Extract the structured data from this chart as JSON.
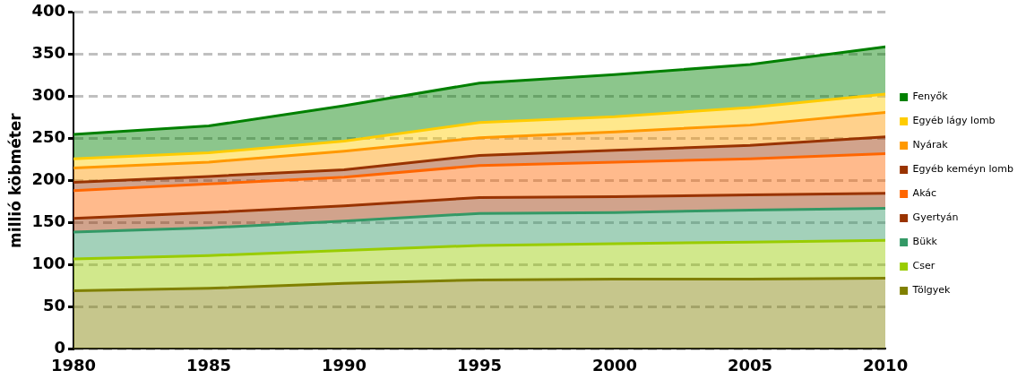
{
  "chart_data": {
    "type": "area",
    "stacked": true,
    "ylabel": "millió köbméter",
    "x": [
      1980,
      1985,
      1990,
      1995,
      2000,
      2005,
      2010
    ],
    "xlim": [
      1980,
      2010
    ],
    "xticks": [
      1980,
      1985,
      1990,
      1995,
      2000,
      2005,
      2010
    ],
    "ylim": [
      0,
      400
    ],
    "yticks": [
      0,
      50,
      100,
      150,
      200,
      250,
      300,
      350,
      400
    ],
    "grid": "y",
    "legend": "right",
    "series": [
      {
        "name": "Tölgyek",
        "color": "#808000",
        "values": [
          69,
          72,
          78,
          82,
          83,
          83,
          84
        ]
      },
      {
        "name": "Cser",
        "color": "#99cc00",
        "values": [
          38,
          39,
          39,
          41,
          42,
          44,
          45
        ]
      },
      {
        "name": "Bükk",
        "color": "#339966",
        "values": [
          32,
          33,
          35,
          38,
          37,
          38,
          38
        ]
      },
      {
        "name": "Gyertyán",
        "color": "#993300",
        "values": [
          16,
          18,
          18,
          19,
          19,
          18,
          18
        ]
      },
      {
        "name": "Akác",
        "color": "#ff6600",
        "values": [
          33,
          34,
          34,
          38,
          41,
          43,
          47
        ]
      },
      {
        "name": "Egyéb keméyn lomb",
        "color": "#993300",
        "values": [
          10,
          9,
          9,
          12,
          14,
          16,
          20
        ]
      },
      {
        "name": "Nyárak",
        "color": "#ff9900",
        "values": [
          17,
          17,
          22,
          21,
          22,
          24,
          29
        ]
      },
      {
        "name": "Egyéb lágy lomb",
        "color": "#ffcc00",
        "values": [
          11,
          11,
          12,
          18,
          18,
          21,
          22
        ]
      },
      {
        "name": "Fenyők",
        "color": "#008000",
        "values": [
          29,
          32,
          42,
          47,
          50,
          51,
          56
        ]
      }
    ]
  }
}
